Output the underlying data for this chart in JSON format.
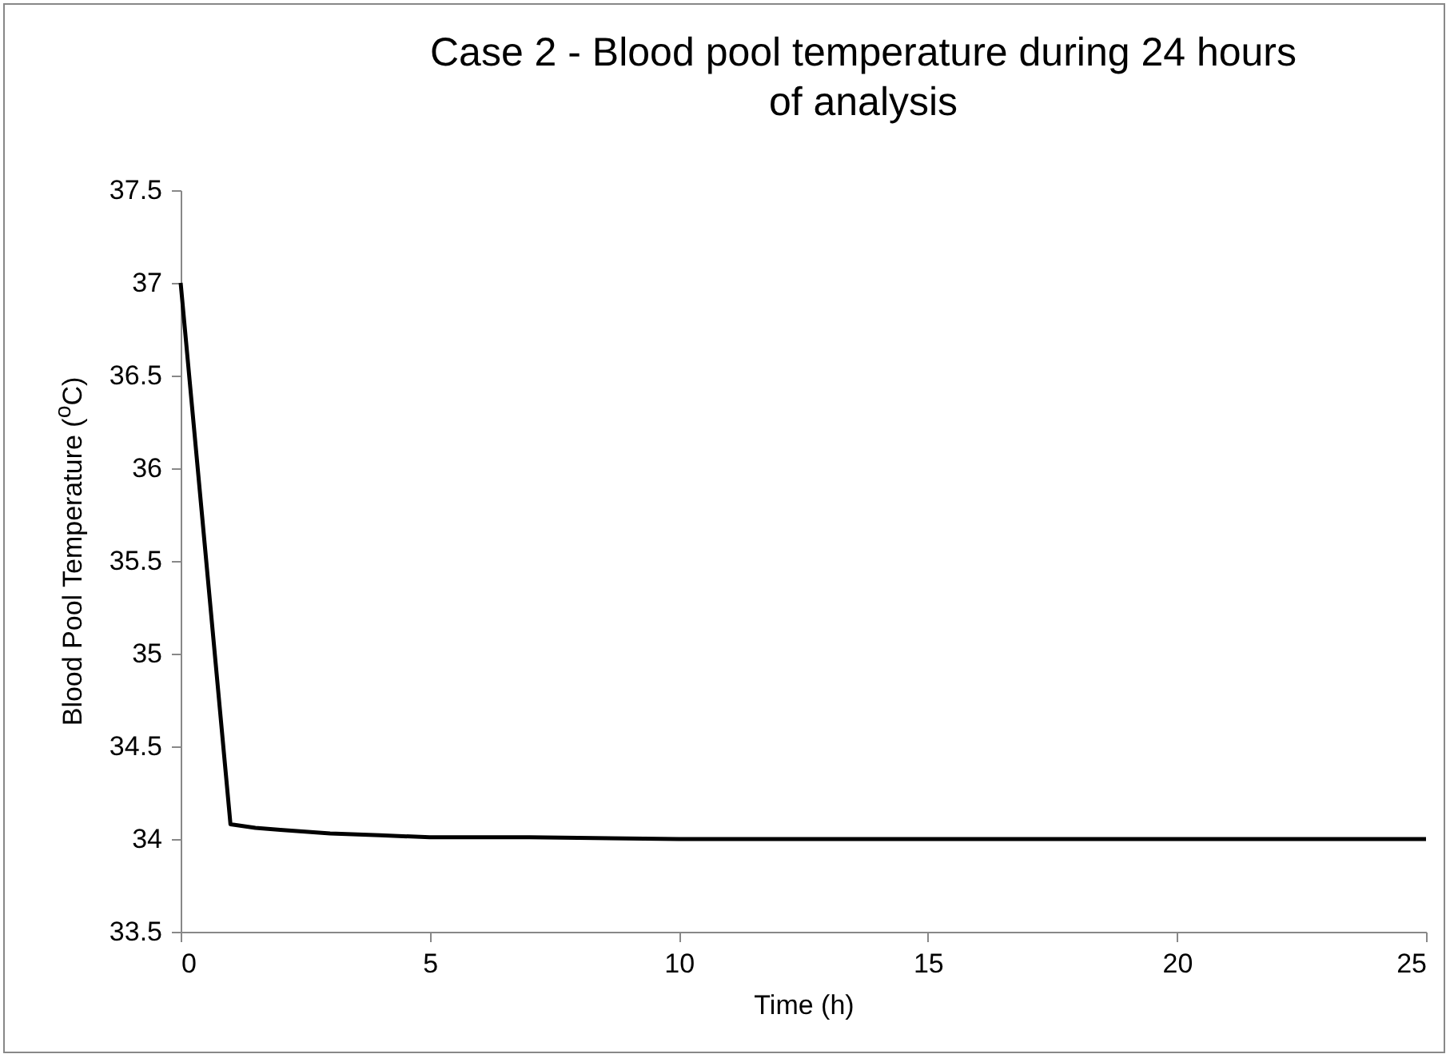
{
  "chart_data": {
    "type": "line",
    "title": "Case 2 - Blood pool temperature during 24 hours of analysis",
    "xlabel": "Time (h)",
    "ylabel": "Blood Pool Temperature ($^{o}$C)",
    "x": [
      0,
      1,
      1.5,
      2,
      3,
      4,
      5,
      7,
      10,
      15,
      25
    ],
    "series": [
      {
        "color": "#000000",
        "values": [
          37,
          34.08,
          34.06,
          34.05,
          34.03,
          34.02,
          34.01,
          34.01,
          34,
          34,
          34
        ]
      }
    ],
    "xlim": [
      0,
      25
    ],
    "xticks": [
      0,
      5,
      10,
      15,
      20,
      25
    ],
    "ylim": [
      33.5,
      37.5
    ],
    "yticks": [
      33.5,
      34,
      34.5,
      35,
      35.5,
      36,
      36.5,
      37,
      37.5
    ],
    "grid": false,
    "marker": "none",
    "line_style": "solid"
  }
}
